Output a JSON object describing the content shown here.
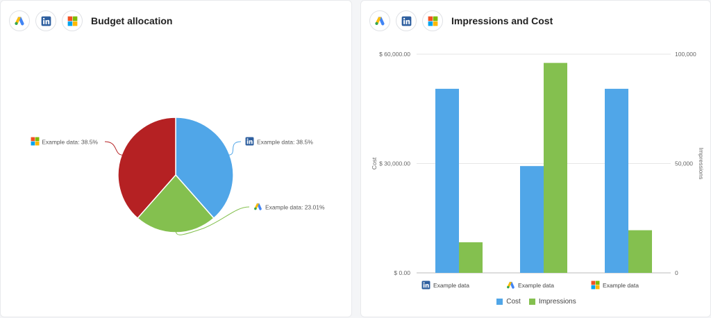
{
  "icons": {
    "google_ads": "google-ads-icon",
    "linkedin": "linkedin-icon",
    "microsoft": "microsoft-ads-icon"
  },
  "colors": {
    "linkedin": "#50a6e8",
    "google": "#84c04f",
    "microsoft": "#b52123",
    "cost": "#50a6e8",
    "impressions": "#84c04f"
  },
  "left_panel": {
    "title": "Budget allocation"
  },
  "right_panel": {
    "title": "Impressions and Cost"
  },
  "chart_data": [
    {
      "type": "pie",
      "title": "Budget allocation",
      "slices": [
        {
          "label": "Example data",
          "value": 38.5,
          "display": "38.5%",
          "icon": "linkedin-icon",
          "color": "#50a6e8"
        },
        {
          "label": "Example data",
          "value": 23.01,
          "display": "23.01%",
          "icon": "google-ads-icon",
          "color": "#84c04f"
        },
        {
          "label": "Example data",
          "value": 38.5,
          "display": "38.5%",
          "icon": "microsoft-ads-icon",
          "color": "#b52123"
        }
      ]
    },
    {
      "type": "bar",
      "title": "Impressions and Cost",
      "categories": [
        "Example data",
        "Example data",
        "Example data"
      ],
      "category_icons": [
        "linkedin-icon",
        "google-ads-icon",
        "microsoft-ads-icon"
      ],
      "series": [
        {
          "name": "Cost",
          "axis": "left",
          "color": "#50a6e8",
          "values": [
            50500,
            29300,
            50500
          ]
        },
        {
          "name": "Impressions",
          "axis": "right",
          "color": "#84c04f",
          "values": [
            14000,
            96000,
            19500
          ]
        }
      ],
      "ylabel": "Cost",
      "y2label": "Impressions",
      "ylim": [
        0,
        60000
      ],
      "y2lim": [
        0,
        100000
      ],
      "yticks": [
        "$ 0.00",
        "$ 30,000.00",
        "$ 60,000.00"
      ],
      "y2ticks": [
        "0",
        "50,000",
        "100,000"
      ],
      "grid": true,
      "legend": "bottom"
    }
  ]
}
